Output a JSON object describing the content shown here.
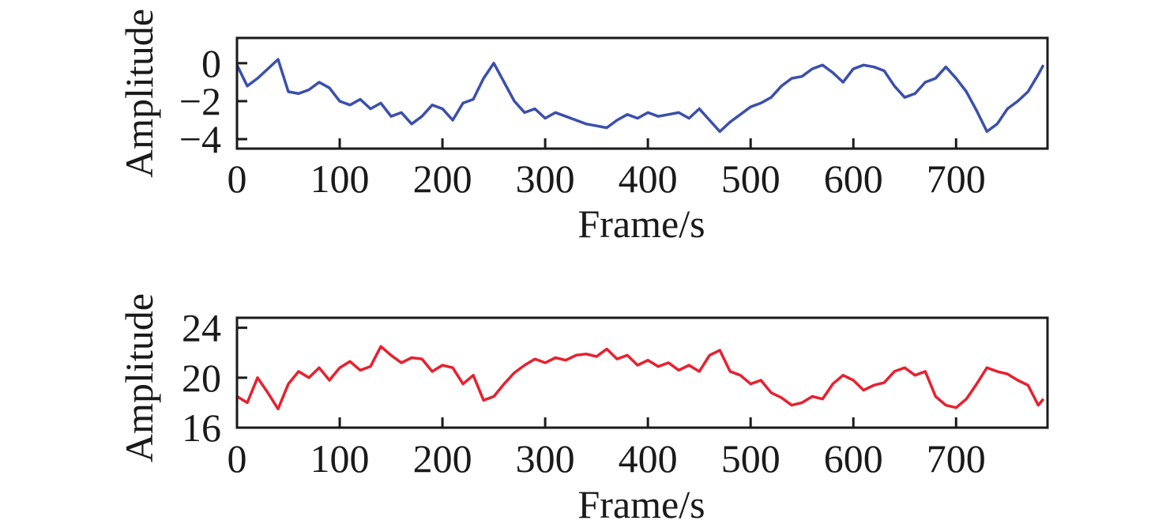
{
  "colors": {
    "top_series": "#3a4fad",
    "bottom_series": "#e8202e",
    "axis": "#1a1a1a"
  },
  "chart_data": [
    {
      "type": "line",
      "xlabel": "Frame/s",
      "ylabel": "Amplitude",
      "xlim": [
        0,
        789
      ],
      "ylim": [
        -4.5,
        1.33
      ],
      "xticks": [
        0,
        100,
        200,
        300,
        400,
        500,
        600,
        700
      ],
      "xtick_labels": [
        "0",
        "100",
        "200",
        "300",
        "400",
        "500",
        "600",
        "700"
      ],
      "yticks": [
        0,
        -2,
        -4
      ],
      "ytick_labels": [
        "0",
        "−2",
        "−4"
      ],
      "grid": false,
      "series": [
        {
          "name": "top",
          "x": [
            0,
            10,
            20,
            30,
            40,
            50,
            60,
            70,
            80,
            90,
            100,
            110,
            120,
            130,
            140,
            150,
            160,
            170,
            180,
            190,
            200,
            210,
            220,
            230,
            240,
            250,
            260,
            270,
            280,
            290,
            300,
            310,
            320,
            330,
            340,
            350,
            360,
            370,
            380,
            390,
            400,
            410,
            420,
            430,
            440,
            450,
            460,
            470,
            480,
            490,
            500,
            510,
            520,
            530,
            540,
            550,
            560,
            570,
            580,
            590,
            600,
            610,
            620,
            630,
            640,
            650,
            660,
            670,
            680,
            690,
            700,
            710,
            720,
            730,
            740,
            750,
            760,
            770,
            780,
            785
          ],
          "y": [
            -0.1,
            -1.2,
            -0.8,
            -0.3,
            0.2,
            -1.5,
            -1.6,
            -1.4,
            -1.0,
            -1.3,
            -2.0,
            -2.2,
            -1.9,
            -2.4,
            -2.1,
            -2.8,
            -2.6,
            -3.2,
            -2.8,
            -2.2,
            -2.4,
            -3.0,
            -2.1,
            -1.9,
            -0.8,
            0.0,
            -1.0,
            -2.0,
            -2.6,
            -2.4,
            -2.9,
            -2.6,
            -2.8,
            -3.0,
            -3.2,
            -3.3,
            -3.4,
            -3.0,
            -2.7,
            -2.9,
            -2.6,
            -2.8,
            -2.7,
            -2.6,
            -2.9,
            -2.4,
            -3.0,
            -3.6,
            -3.1,
            -2.7,
            -2.3,
            -2.1,
            -1.8,
            -1.2,
            -0.8,
            -0.7,
            -0.3,
            -0.1,
            -0.5,
            -1.0,
            -0.3,
            -0.1,
            -0.2,
            -0.4,
            -1.2,
            -1.8,
            -1.6,
            -1.0,
            -0.8,
            -0.2,
            -0.8,
            -1.5,
            -2.5,
            -3.6,
            -3.2,
            -2.4,
            -2.0,
            -1.5,
            -0.6,
            -0.1
          ]
        }
      ]
    },
    {
      "type": "line",
      "xlabel": "Frame/s",
      "ylabel": "Amplitude",
      "xlim": [
        0,
        789
      ],
      "ylim": [
        16,
        24.8
      ],
      "xticks": [
        0,
        100,
        200,
        300,
        400,
        500,
        600,
        700
      ],
      "xtick_labels": [
        "0",
        "100",
        "200",
        "300",
        "400",
        "500",
        "600",
        "700"
      ],
      "yticks": [
        24,
        20,
        16
      ],
      "ytick_labels": [
        "24",
        "20",
        "16"
      ],
      "grid": false,
      "series": [
        {
          "name": "bottom",
          "x": [
            0,
            10,
            20,
            30,
            40,
            50,
            60,
            70,
            80,
            90,
            100,
            110,
            120,
            130,
            140,
            150,
            160,
            170,
            180,
            190,
            200,
            210,
            220,
            230,
            240,
            250,
            260,
            270,
            280,
            290,
            300,
            310,
            320,
            330,
            340,
            350,
            360,
            370,
            380,
            390,
            400,
            410,
            420,
            430,
            440,
            450,
            460,
            470,
            480,
            490,
            500,
            510,
            520,
            530,
            540,
            550,
            560,
            570,
            580,
            590,
            600,
            610,
            620,
            630,
            640,
            650,
            660,
            670,
            680,
            690,
            700,
            710,
            720,
            730,
            740,
            750,
            760,
            770,
            780,
            785
          ],
          "y": [
            18.5,
            18.0,
            20.0,
            18.8,
            17.5,
            19.5,
            20.5,
            20.0,
            20.8,
            19.8,
            20.8,
            21.3,
            20.6,
            20.9,
            22.5,
            21.8,
            21.2,
            21.6,
            21.5,
            20.5,
            21.0,
            20.8,
            19.5,
            20.2,
            18.2,
            18.5,
            19.5,
            20.4,
            21.0,
            21.5,
            21.2,
            21.6,
            21.4,
            21.8,
            21.9,
            21.7,
            22.3,
            21.5,
            21.8,
            21.0,
            21.4,
            20.9,
            21.2,
            20.6,
            21.0,
            20.5,
            21.8,
            22.2,
            20.5,
            20.2,
            19.5,
            19.8,
            18.8,
            18.4,
            17.8,
            18.0,
            18.5,
            18.3,
            19.5,
            20.2,
            19.8,
            19.0,
            19.4,
            19.6,
            20.5,
            20.8,
            20.2,
            20.5,
            18.5,
            17.8,
            17.6,
            18.3,
            19.5,
            20.8,
            20.5,
            20.3,
            19.8,
            19.4,
            17.8,
            18.3
          ]
        }
      ]
    }
  ]
}
